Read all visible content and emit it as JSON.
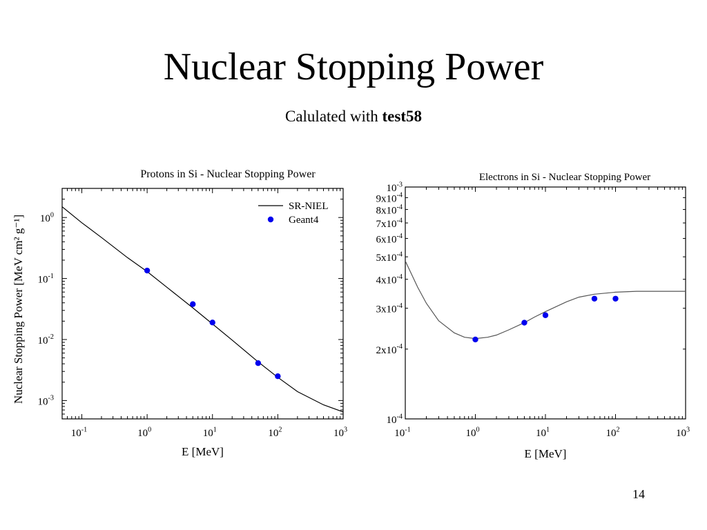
{
  "slide": {
    "title": "Nuclear Stopping Power",
    "subtitle_prefix": "Calulated with ",
    "subtitle_bold": "test58",
    "page_number": "14"
  },
  "chart_data": [
    {
      "type": "line",
      "title": "Protons in Si - Nuclear Stopping Power",
      "xlabel": "E [MeV]",
      "ylabel": "Nuclear Stopping Power [MeV cm² g⁻¹]",
      "xscale": "log",
      "yscale": "log",
      "xlim": [
        0.05,
        1000
      ],
      "ylim": [
        0.0005,
        3
      ],
      "x_ticks": [
        {
          "value": 0.1,
          "base": "10",
          "exp": "-1"
        },
        {
          "value": 1,
          "base": "10",
          "exp": "0"
        },
        {
          "value": 10,
          "base": "10",
          "exp": "1"
        },
        {
          "value": 100,
          "base": "10",
          "exp": "2"
        },
        {
          "value": 1000,
          "base": "10",
          "exp": "3"
        }
      ],
      "y_ticks": [
        {
          "value": 0.001,
          "base": "10",
          "exp": "-3"
        },
        {
          "value": 0.01,
          "base": "10",
          "exp": "-2"
        },
        {
          "value": 0.1,
          "base": "10",
          "exp": "-1"
        },
        {
          "value": 1,
          "base": "10",
          "exp": "0"
        }
      ],
      "legend_position": "top-right",
      "series": [
        {
          "name": "SR-NIEL",
          "kind": "line",
          "color": "#000000",
          "x": [
            0.05,
            0.1,
            0.2,
            0.5,
            1,
            2,
            5,
            10,
            20,
            50,
            100,
            200,
            500,
            1000
          ],
          "y": [
            1.5,
            0.82,
            0.47,
            0.22,
            0.13,
            0.072,
            0.033,
            0.018,
            0.0098,
            0.0043,
            0.0024,
            0.0014,
            0.00085,
            0.00065
          ]
        },
        {
          "name": "Geant4",
          "kind": "scatter",
          "color": "#0000ee",
          "x": [
            1,
            5,
            10,
            50,
            100
          ],
          "y": [
            0.135,
            0.038,
            0.019,
            0.0041,
            0.0025
          ]
        }
      ]
    },
    {
      "type": "line",
      "title": "Electrons in Si - Nuclear Stopping Power",
      "xlabel": "E [MeV]",
      "ylabel": "",
      "xscale": "log",
      "yscale": "log",
      "xlim": [
        0.1,
        1000
      ],
      "ylim": [
        0.0001,
        0.001
      ],
      "x_ticks": [
        {
          "value": 0.1,
          "base": "10",
          "exp": "-1"
        },
        {
          "value": 1,
          "base": "10",
          "exp": "0"
        },
        {
          "value": 10,
          "base": "10",
          "exp": "1"
        },
        {
          "value": 100,
          "base": "10",
          "exp": "2"
        },
        {
          "value": 1000,
          "base": "10",
          "exp": "3"
        }
      ],
      "y_ticks": [
        {
          "value": 0.0001,
          "base": "10",
          "exp": "-4"
        },
        {
          "value": 0.0002,
          "base": "2x10",
          "exp": "-4"
        },
        {
          "value": 0.0003,
          "base": "3x10",
          "exp": "-4"
        },
        {
          "value": 0.0004,
          "base": "4x10",
          "exp": "-4"
        },
        {
          "value": 0.0005,
          "base": "5x10",
          "exp": "-4"
        },
        {
          "value": 0.0006,
          "base": "6x10",
          "exp": "-4"
        },
        {
          "value": 0.0007,
          "base": "7x10",
          "exp": "-4"
        },
        {
          "value": 0.0008,
          "base": "8x10",
          "exp": "-4"
        },
        {
          "value": 0.0009,
          "base": "9x10",
          "exp": "-4"
        },
        {
          "value": 0.001,
          "base": "10",
          "exp": "-3"
        }
      ],
      "series": [
        {
          "kind": "line",
          "color": "#555555",
          "x": [
            0.1,
            0.15,
            0.2,
            0.3,
            0.5,
            0.7,
            1,
            1.5,
            2,
            3,
            5,
            7,
            10,
            20,
            30,
            50,
            100,
            200,
            300,
            500,
            1000
          ],
          "y": [
            0.00048,
            0.00037,
            0.000315,
            0.000265,
            0.000235,
            0.000225,
            0.000222,
            0.000225,
            0.00023,
            0.000242,
            0.00026,
            0.000275,
            0.00029,
            0.00032,
            0.000335,
            0.000345,
            0.000352,
            0.000355,
            0.000355,
            0.000355,
            0.000355
          ]
        },
        {
          "kind": "scatter",
          "color": "#0000ee",
          "x": [
            1,
            5,
            10,
            50,
            100
          ],
          "y": [
            0.00022,
            0.00026,
            0.00028,
            0.00033,
            0.00033
          ]
        }
      ]
    }
  ]
}
